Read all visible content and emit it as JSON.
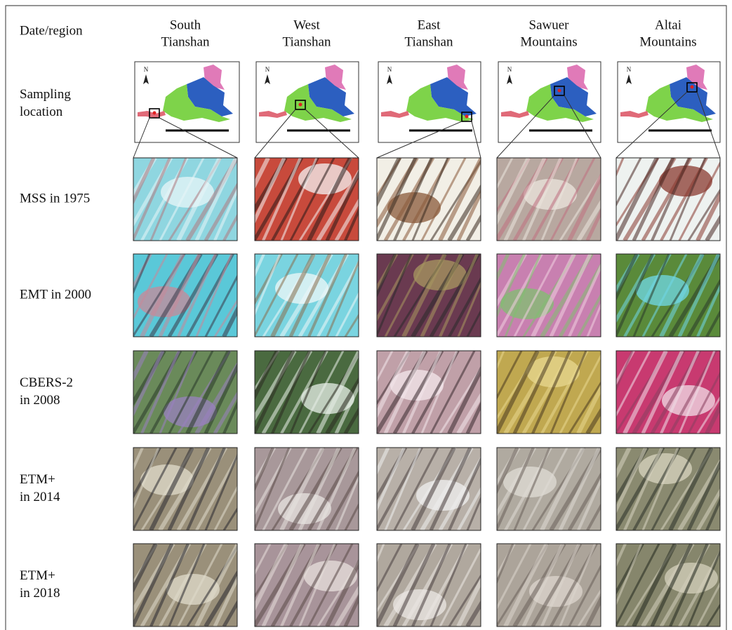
{
  "header": {
    "corner": "Date/region",
    "regions": [
      [
        "South",
        "Tianshan"
      ],
      [
        "West",
        "Tianshan"
      ],
      [
        "East",
        "Tianshan"
      ],
      [
        "Sawuer",
        "Mountains"
      ],
      [
        "Altai",
        "Mountains"
      ]
    ]
  },
  "map_north_label": "N",
  "rows": [
    {
      "label": [
        "Sampling",
        "location"
      ]
    },
    {
      "label": [
        "MSS in 1975"
      ]
    },
    {
      "label": [
        "EMT in 2000"
      ]
    },
    {
      "label": [
        "CBERS-2",
        "in 2008"
      ]
    },
    {
      "label": [
        "ETM+",
        "in 2014"
      ]
    },
    {
      "label": [
        "ETM+",
        "in 2018"
      ]
    }
  ]
}
